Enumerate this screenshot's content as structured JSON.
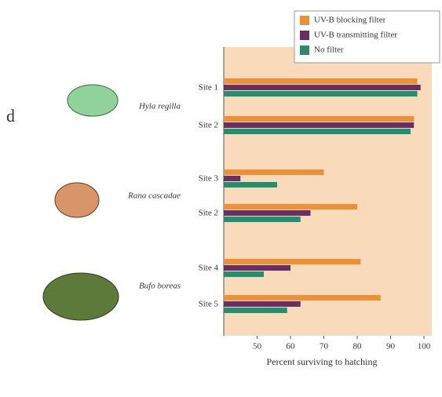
{
  "chart_data": {
    "type": "hbar",
    "panel_label": "d",
    "xlabel": "Percent surviving to hatching",
    "groups": [
      "Hyla regilla",
      "Rana cascadae",
      "Bufo boreas"
    ],
    "categories": [
      "Site 1",
      "Site 2",
      "Site 3",
      "Site 2",
      "Site 4",
      "Site 5"
    ],
    "series": [
      {
        "name": "UV-B blocking filter",
        "color": "#e8913f",
        "values": [
          98,
          97,
          70,
          80,
          81,
          87
        ]
      },
      {
        "name": "UV-B transmitting filter",
        "color": "#6b2f5e",
        "values": [
          99,
          97,
          45,
          66,
          60,
          63
        ]
      },
      {
        "name": "No filter",
        "color": "#2e8b6a",
        "values": [
          98,
          96,
          56,
          63,
          52,
          59
        ]
      }
    ],
    "xlim": [
      40,
      100
    ],
    "xticks": [
      50,
      60,
      70,
      80,
      90,
      100
    ]
  }
}
